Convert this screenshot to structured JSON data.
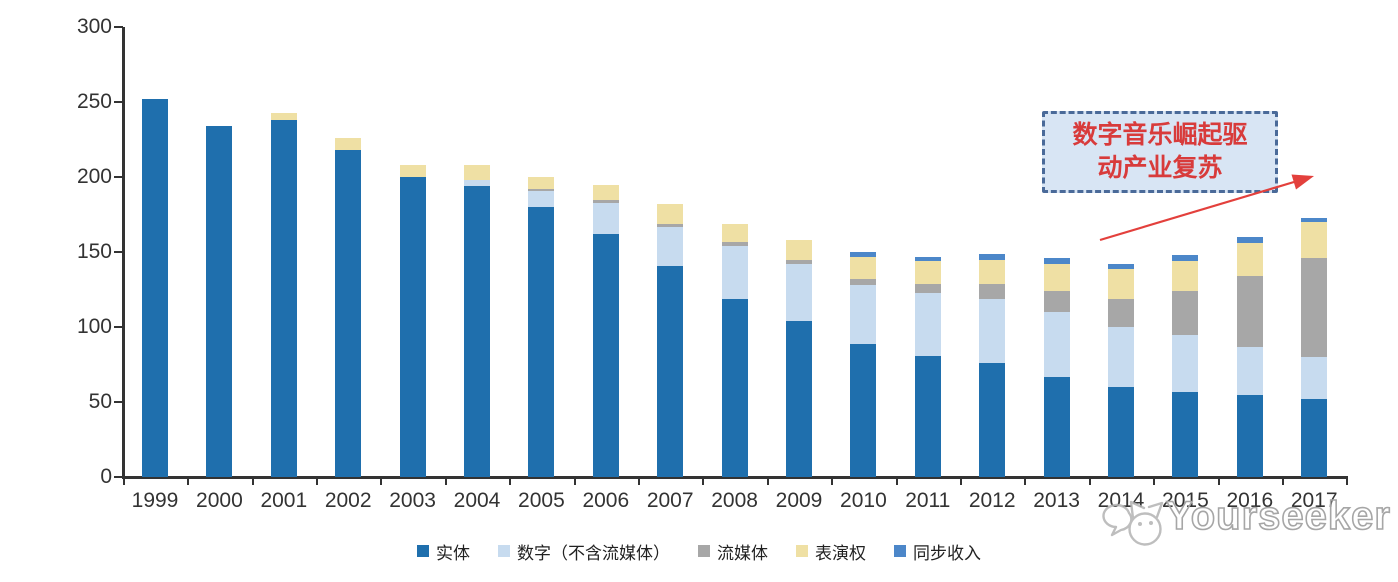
{
  "chart_data": {
    "type": "bar",
    "stacked": true,
    "title": "",
    "xlabel": "",
    "ylabel": "",
    "x": [
      "1999",
      "2000",
      "2001",
      "2002",
      "2003",
      "2004",
      "2005",
      "2006",
      "2007",
      "2008",
      "2009",
      "2010",
      "2011",
      "2012",
      "2013",
      "2014",
      "2015",
      "2016",
      "2017"
    ],
    "series": [
      {
        "name": "实体",
        "color": "#1F6FAD",
        "values": [
          252,
          234,
          238,
          218,
          200,
          194,
          180,
          162,
          141,
          119,
          104,
          89,
          81,
          76,
          67,
          60,
          57,
          55,
          52
        ]
      },
      {
        "name": "数字（不含流媒体）",
        "color": "#C7DBEF",
        "values": [
          0,
          0,
          0,
          0,
          0,
          4,
          11,
          21,
          26,
          35,
          38,
          39,
          42,
          43,
          43,
          40,
          38,
          32,
          28
        ]
      },
      {
        "name": "流媒体",
        "color": "#A7A7A7",
        "values": [
          0,
          0,
          0,
          0,
          0,
          0,
          1,
          2,
          2,
          3,
          3,
          4,
          6,
          10,
          14,
          19,
          29,
          47,
          66
        ]
      },
      {
        "name": "表演权",
        "color": "#EFE0A4",
        "values": [
          0,
          0,
          5,
          8,
          8,
          10,
          8,
          10,
          13,
          12,
          13,
          15,
          15,
          16,
          18,
          20,
          20,
          22,
          24
        ]
      },
      {
        "name": "同步收入",
        "color": "#4C87C9",
        "values": [
          0,
          0,
          0,
          0,
          0,
          0,
          0,
          0,
          0,
          0,
          0,
          3,
          3,
          4,
          4,
          3,
          4,
          4,
          3
        ]
      }
    ],
    "totals": [
      252,
      234,
      243,
      226,
      208,
      208,
      200,
      195,
      182,
      169,
      158,
      150,
      147,
      149,
      146,
      142,
      148,
      160,
      173
    ],
    "ylim": [
      0,
      300
    ],
    "yticks": [
      0,
      50,
      100,
      150,
      200,
      250,
      300
    ],
    "grid": false,
    "legend_position": "bottom"
  },
  "annotation": {
    "line1": "数字音乐崛起驱",
    "line2": "动产业复苏",
    "text_color": "#D83B3B",
    "box_fill": "#D8E5F4",
    "box_border_color": "#4A6A99",
    "arrow_color": "#E3403C"
  },
  "watermark": {
    "text": "Yourseeker",
    "logo": "cat-logo",
    "color": "#A6A6A6"
  }
}
